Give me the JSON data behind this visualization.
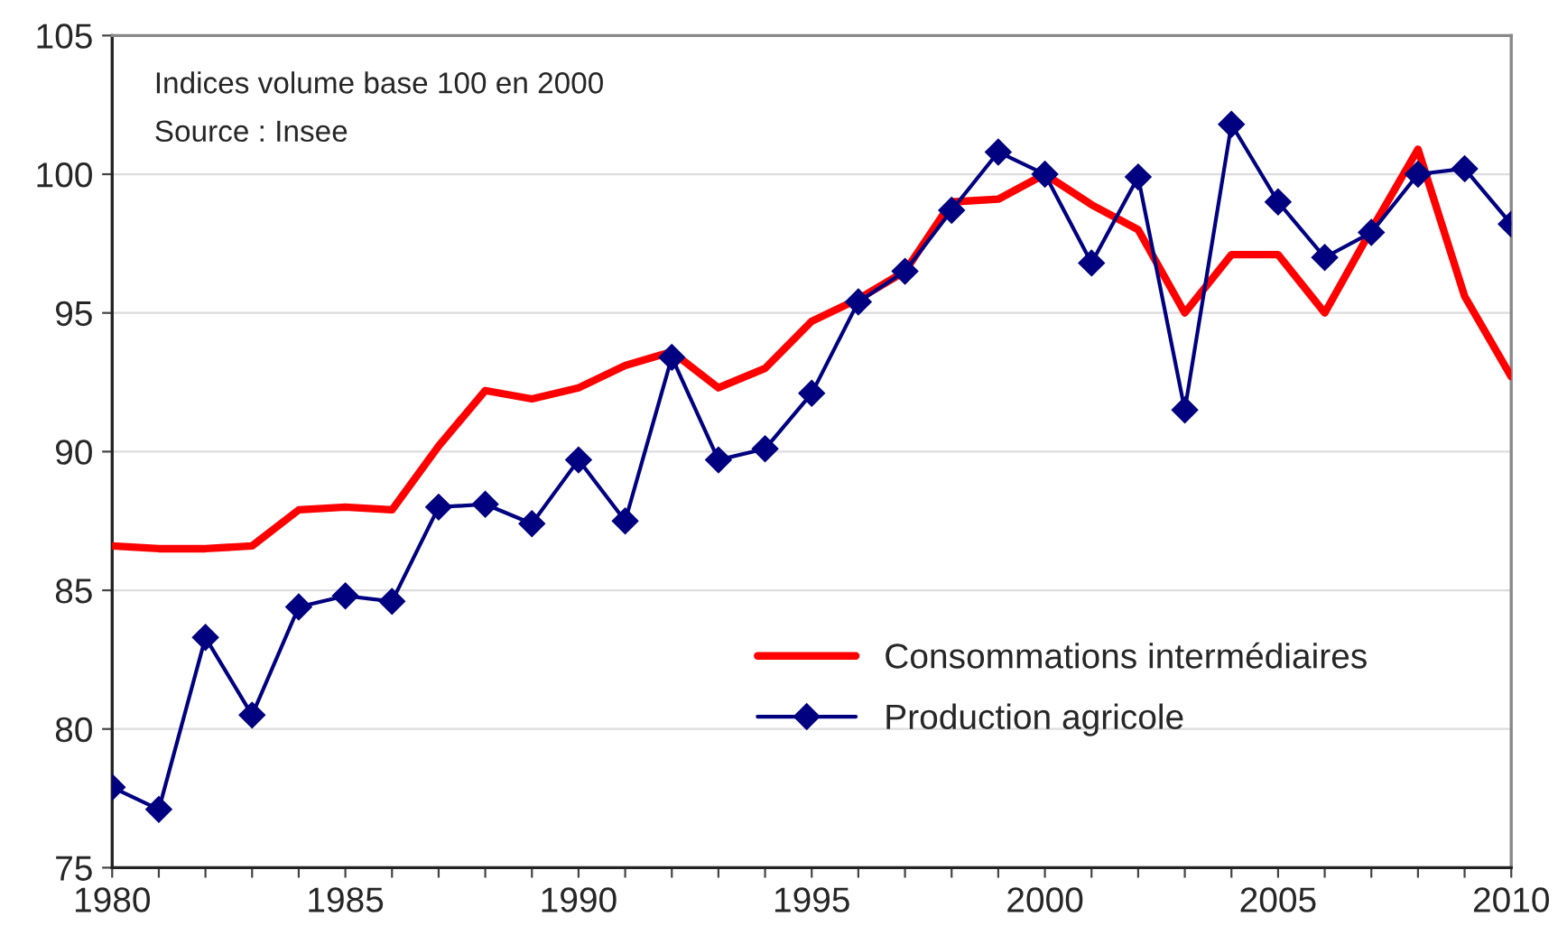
{
  "chart_data": {
    "type": "line",
    "x": [
      1980,
      1981,
      1982,
      1983,
      1984,
      1985,
      1986,
      1987,
      1988,
      1989,
      1990,
      1991,
      1992,
      1993,
      1994,
      1995,
      1996,
      1997,
      1998,
      1999,
      2000,
      2001,
      2002,
      2003,
      2004,
      2005,
      2006,
      2007,
      2008,
      2009,
      2010
    ],
    "series": [
      {
        "name": "Consommations intermédiaires",
        "color": "#ff0000",
        "marker": "none",
        "values": [
          86.6,
          86.5,
          86.5,
          86.6,
          87.9,
          88.0,
          87.9,
          90.2,
          92.2,
          91.9,
          92.3,
          93.1,
          93.6,
          92.3,
          93.0,
          94.7,
          95.5,
          96.5,
          99.0,
          99.1,
          100.0,
          98.9,
          98.0,
          95.0,
          97.1,
          97.1,
          95.0,
          98.0,
          100.9,
          95.6,
          92.7
        ]
      },
      {
        "name": "Production agricole",
        "color": "#000080",
        "marker": "diamond",
        "values": [
          77.9,
          77.1,
          83.3,
          80.5,
          84.4,
          84.8,
          84.6,
          88.0,
          88.1,
          87.4,
          89.7,
          87.5,
          93.4,
          89.7,
          90.1,
          92.1,
          95.4,
          96.5,
          98.7,
          100.8,
          100.0,
          96.8,
          99.9,
          91.5,
          101.8,
          99.0,
          97.0,
          97.9,
          100.0,
          100.2,
          98.2
        ]
      }
    ],
    "xlim": [
      1980,
      2010
    ],
    "xticks": [
      1980,
      {
        "value": 1981,
        "label": null
      },
      {
        "value": 1982,
        "label": null
      },
      {
        "value": 1983,
        "label": null
      },
      {
        "value": 1984,
        "label": null
      },
      1985,
      {
        "value": 1986,
        "label": null
      },
      {
        "value": 1987,
        "label": null
      },
      {
        "value": 1988,
        "label": null
      },
      {
        "value": 1989,
        "label": null
      },
      1990,
      {
        "value": 1991,
        "label": null
      },
      {
        "value": 1992,
        "label": null
      },
      {
        "value": 1993,
        "label": null
      },
      {
        "value": 1994,
        "label": null
      },
      1995,
      {
        "value": 1996,
        "label": null
      },
      {
        "value": 1997,
        "label": null
      },
      {
        "value": 1998,
        "label": null
      },
      {
        "value": 1999,
        "label": null
      },
      2000,
      {
        "value": 2001,
        "label": null
      },
      {
        "value": 2002,
        "label": null
      },
      {
        "value": 2003,
        "label": null
      },
      {
        "value": 2004,
        "label": null
      },
      2005,
      {
        "value": 2006,
        "label": null
      },
      {
        "value": 2007,
        "label": null
      },
      {
        "value": 2008,
        "label": null
      },
      {
        "value": 2009,
        "label": null
      },
      2010
    ],
    "ylim": [
      75,
      105
    ],
    "yticks": [
      75,
      80,
      85,
      90,
      95,
      100,
      105
    ],
    "grid": "y",
    "legend": "bottom right",
    "line_style": "solid",
    "annotations": [
      "Indices volume base 100 en 2000",
      "Source : Insee"
    ]
  }
}
